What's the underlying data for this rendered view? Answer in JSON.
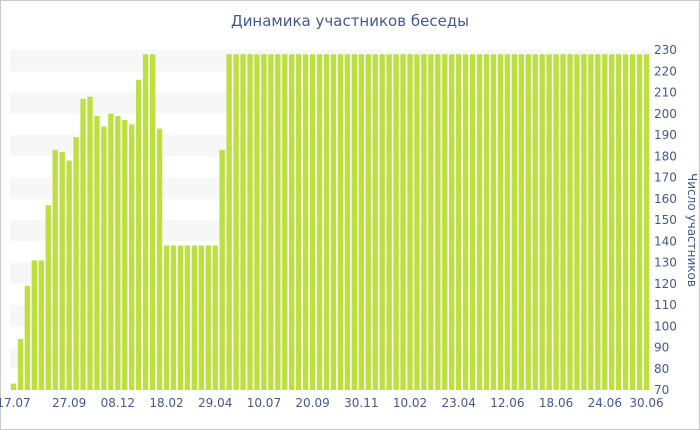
{
  "chart_data": {
    "type": "bar",
    "title": "Динамика участников беседы",
    "ylabel": "Число участников",
    "xlabel": "",
    "ylim": [
      70,
      230
    ],
    "yticks": [
      70,
      80,
      90,
      100,
      110,
      120,
      130,
      140,
      150,
      160,
      170,
      180,
      190,
      200,
      210,
      220,
      230
    ],
    "xtick_labels": [
      "17.07",
      "27.09",
      "08.12",
      "18.02",
      "29.04",
      "10.07",
      "20.09",
      "30.11",
      "10.02",
      "23.04",
      "12.06",
      "18.06",
      "24.06",
      "30.06"
    ],
    "xtick_bar_index": [
      0,
      8,
      15,
      22,
      29,
      36,
      43,
      50,
      57,
      64,
      71,
      78,
      85,
      91
    ],
    "grid": "horizontal bands",
    "y_axis_side": "right",
    "bar_color": "#bddf3f",
    "values": [
      73,
      94,
      119,
      131,
      131,
      157,
      183,
      182,
      178,
      189,
      207,
      208,
      199,
      194,
      200,
      199,
      197,
      195,
      216,
      228,
      228,
      193,
      138,
      138,
      138,
      138,
      138,
      138,
      138,
      138,
      183,
      228,
      228,
      228,
      228,
      228,
      228,
      228,
      228,
      228,
      228,
      228,
      228,
      228,
      228,
      228,
      228,
      228,
      228,
      228,
      228,
      228,
      228,
      228,
      228,
      228,
      228,
      228,
      228,
      228,
      228,
      228,
      228,
      228,
      228,
      228,
      228,
      228,
      228,
      228,
      228,
      228,
      228,
      228,
      228,
      228,
      228,
      228,
      228,
      228,
      228,
      228,
      228,
      228,
      228,
      228,
      228,
      228,
      228,
      228,
      228,
      228
    ]
  }
}
